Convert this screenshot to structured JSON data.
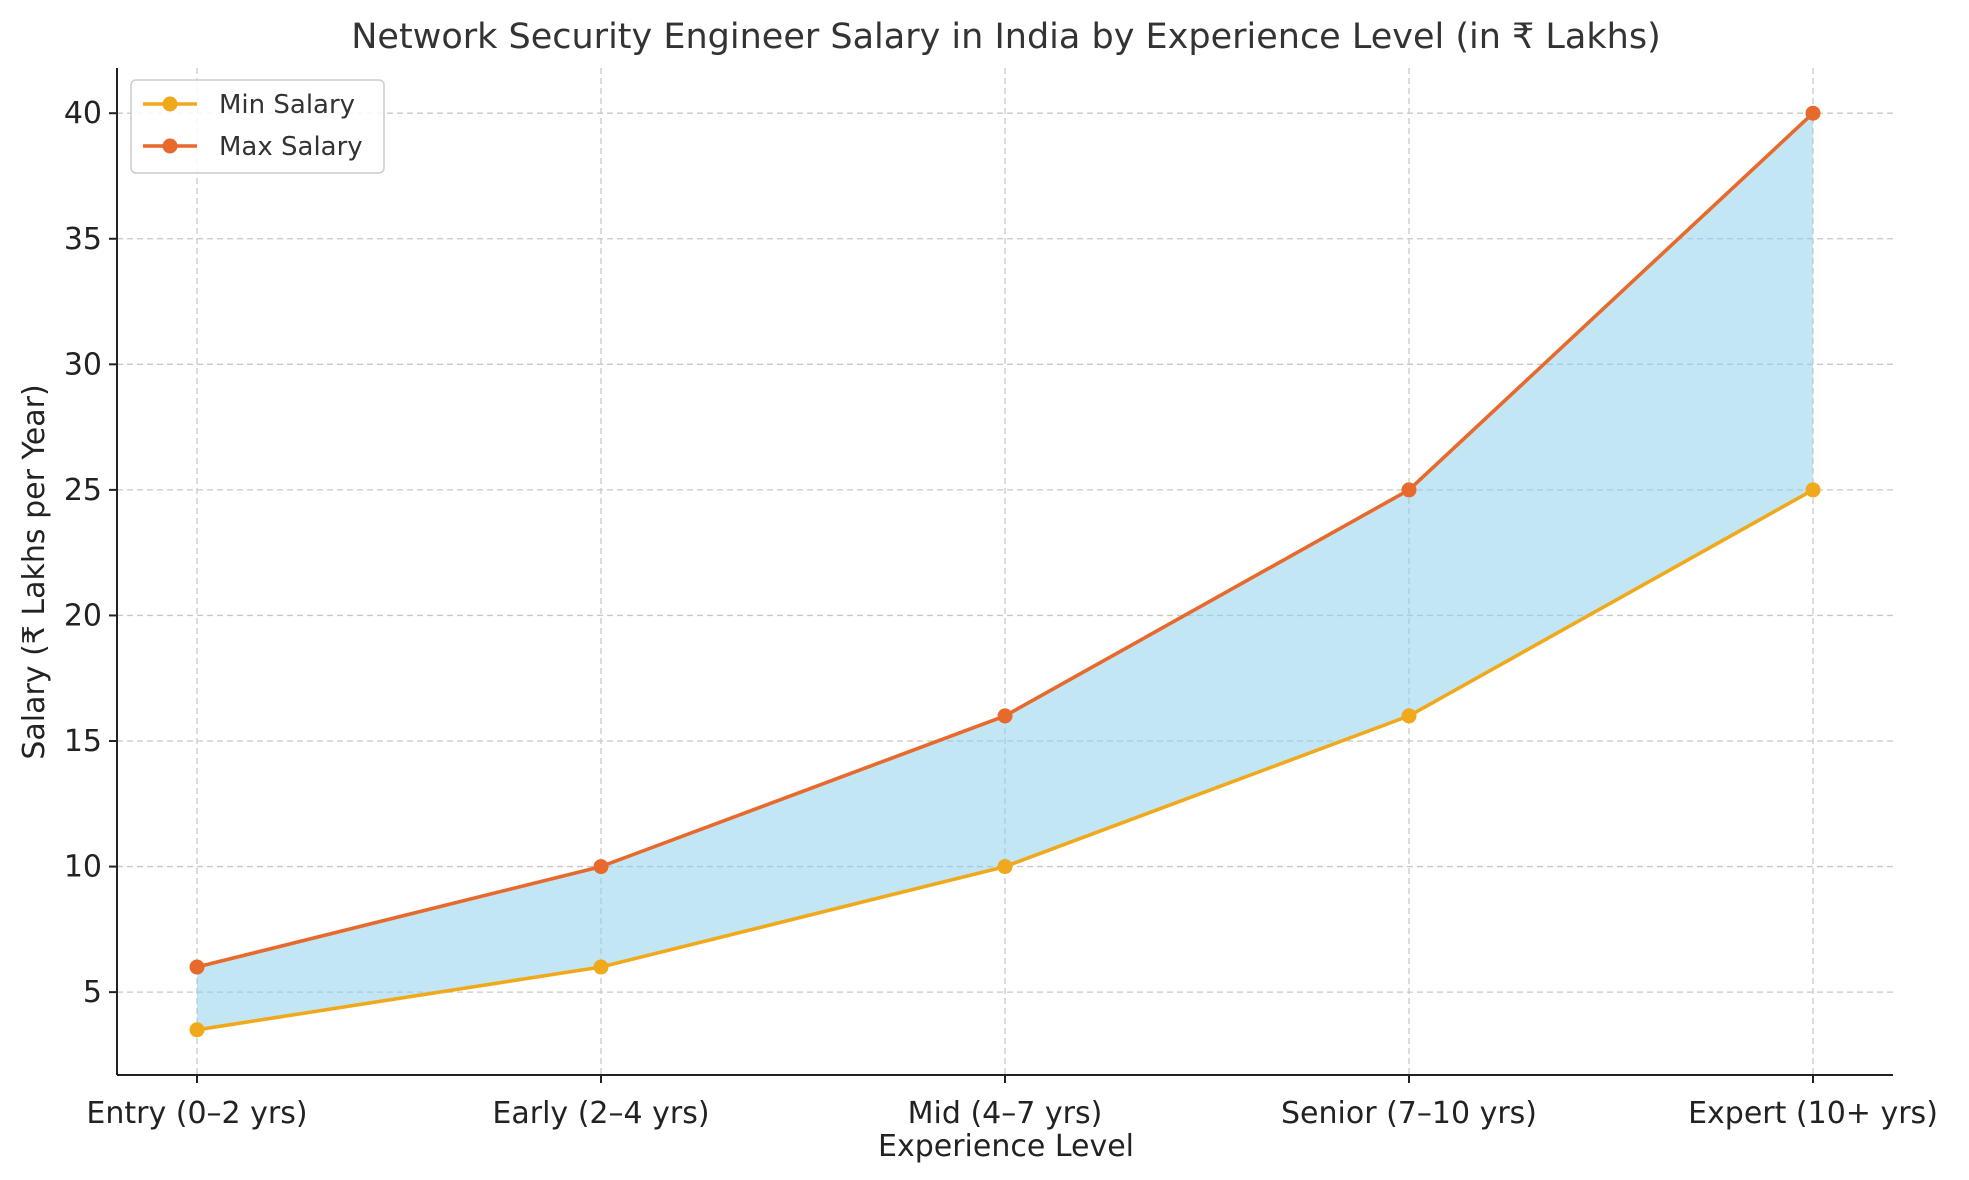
{
  "chart_data": {
    "type": "line",
    "title": "Network Security Engineer Salary in India by Experience Level (in ₹ Lakhs)",
    "xlabel": "Experience Level",
    "ylabel": "Salary (₹ Lakhs per Year)",
    "categories": [
      "Entry (0–2 yrs)",
      "Early (2–4 yrs)",
      "Mid (4–7 yrs)",
      "Senior (7–10 yrs)",
      "Expert (10+ yrs)"
    ],
    "series": [
      {
        "name": "Min Salary",
        "values": [
          3.5,
          6,
          10,
          16,
          25
        ],
        "color": "#f0a91b"
      },
      {
        "name": "Max Salary",
        "values": [
          6,
          10,
          16,
          25,
          40
        ],
        "color": "#e8692c"
      }
    ],
    "fill_between": {
      "color": "#87ceeb",
      "opacity": 0.5
    },
    "yticks": [
      5,
      10,
      15,
      20,
      25,
      30,
      35,
      40
    ],
    "ylim": [
      1.7,
      41.8
    ],
    "grid": true,
    "legend": "top-left"
  }
}
